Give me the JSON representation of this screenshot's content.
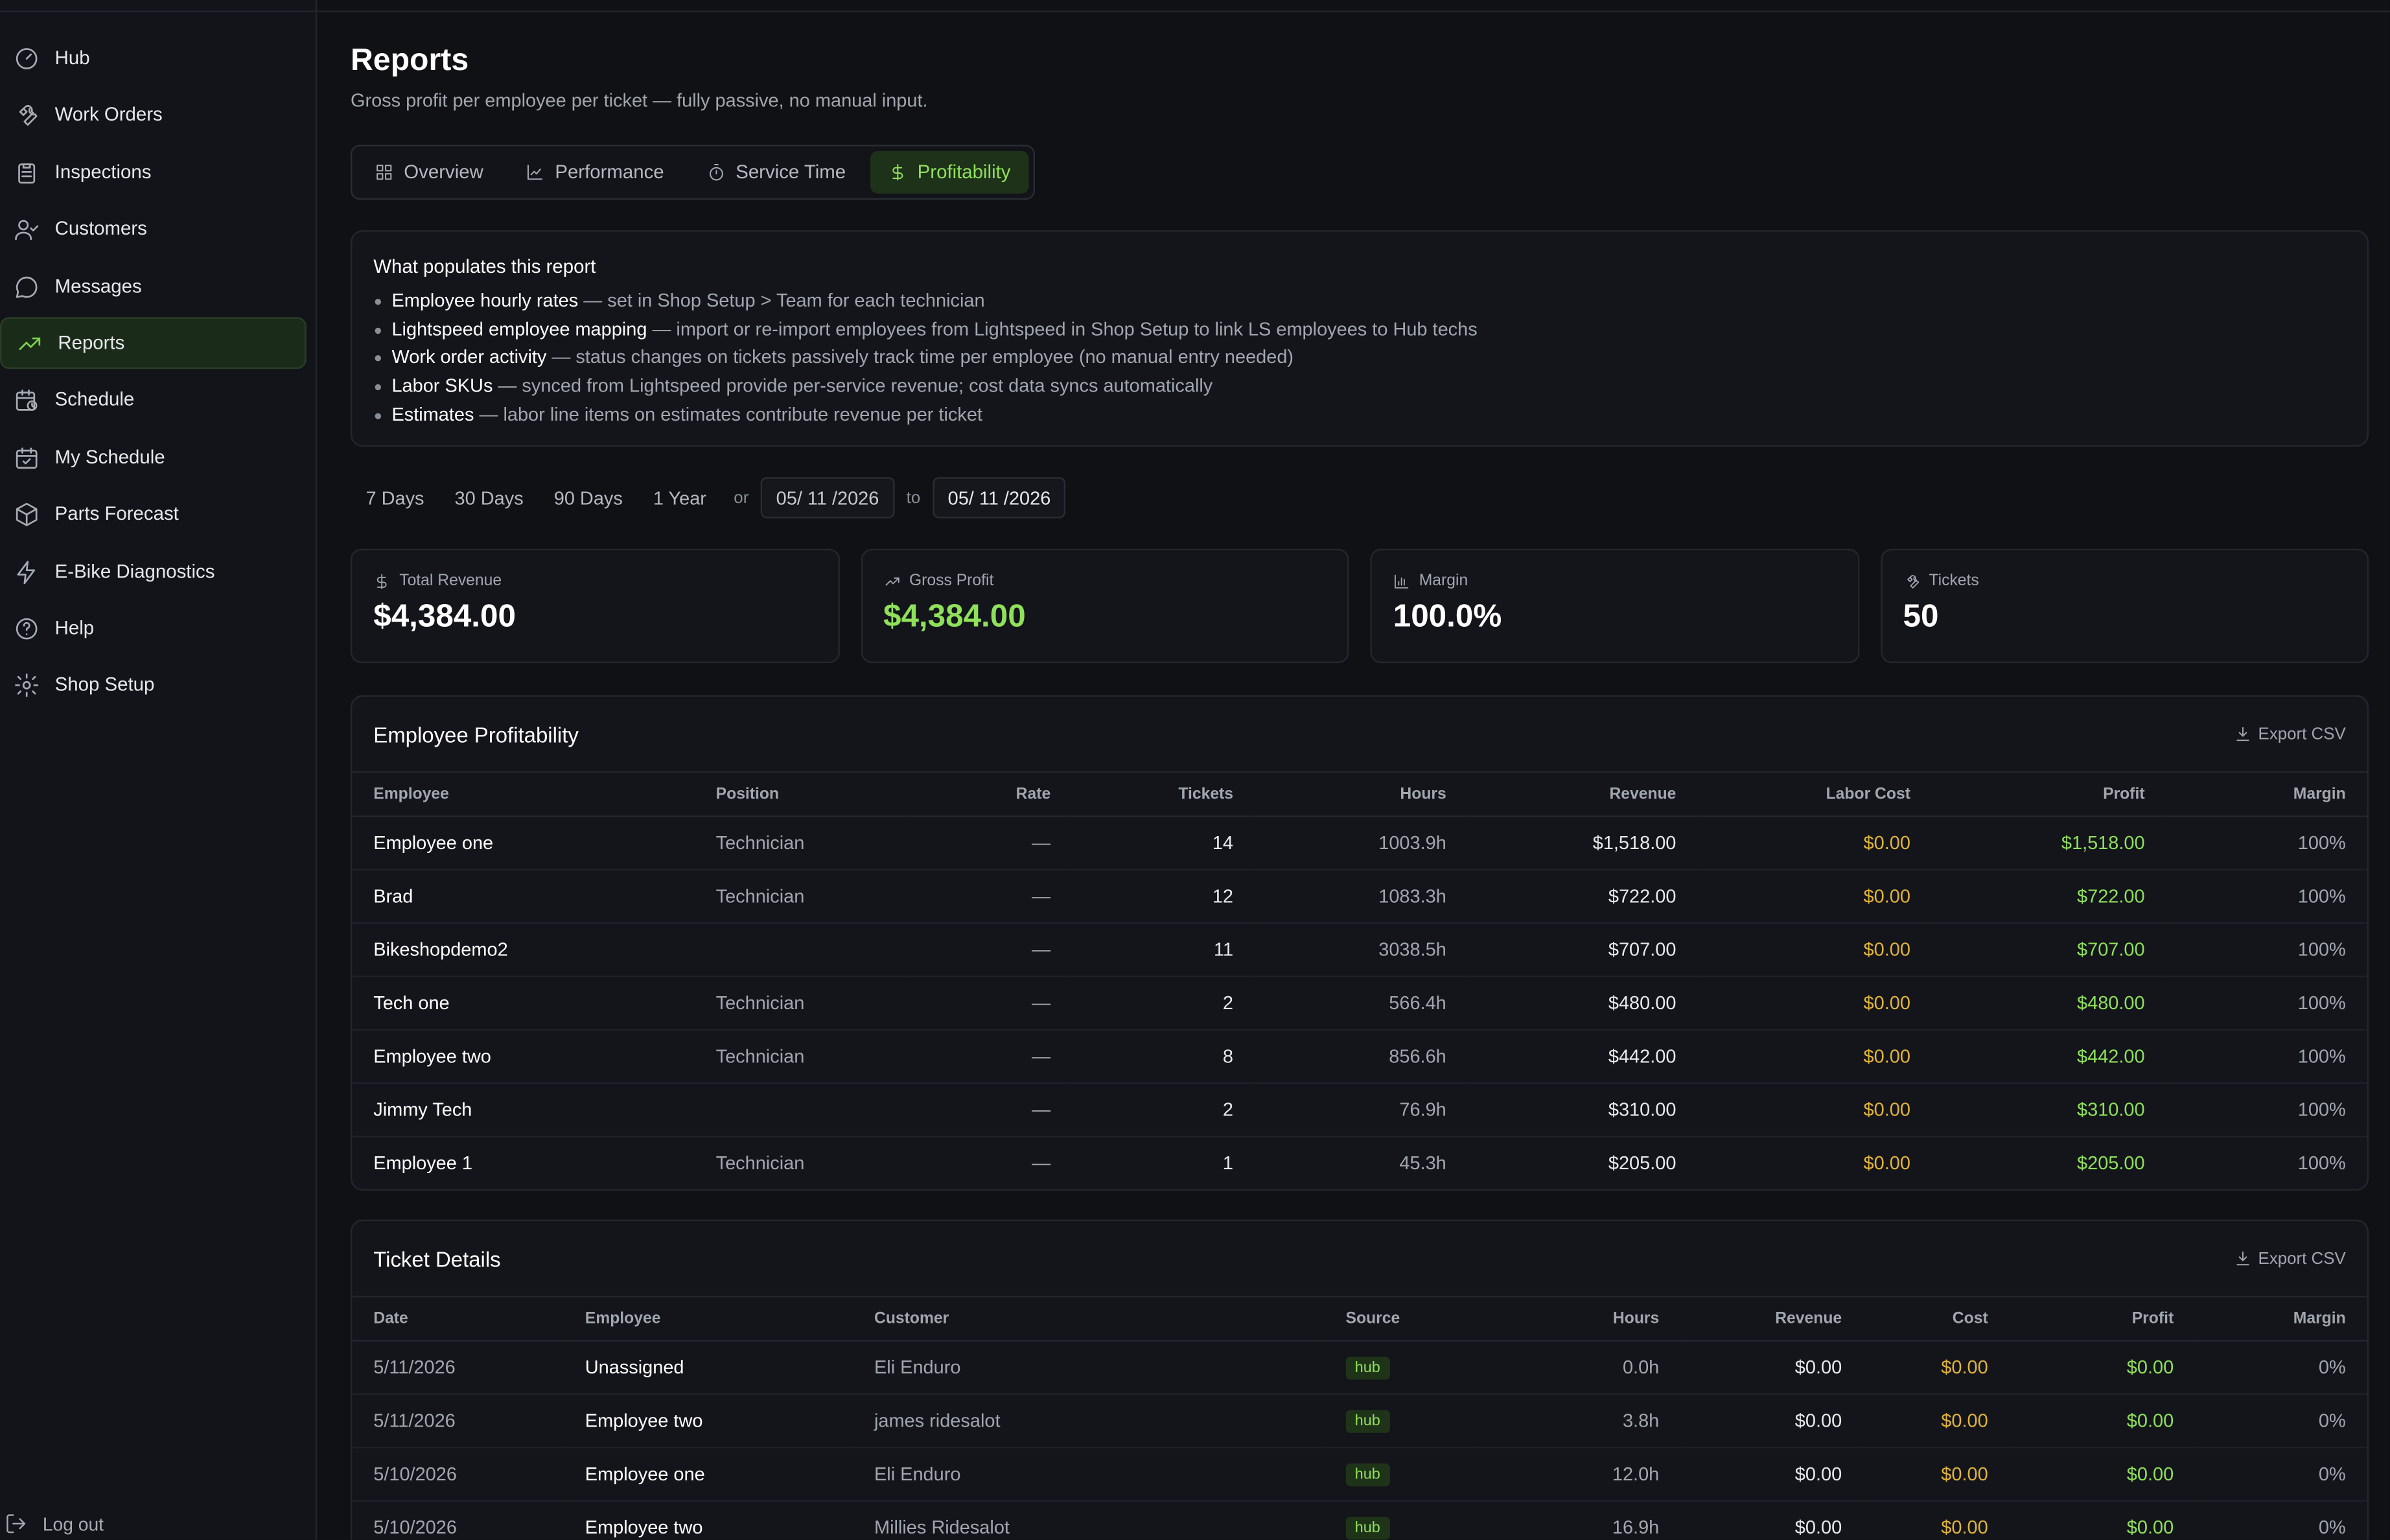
{
  "sidebar": {
    "items": [
      {
        "label": "Hub",
        "icon": "gauge-icon"
      },
      {
        "label": "Work Orders",
        "icon": "wrench-icon"
      },
      {
        "label": "Inspections",
        "icon": "clipboard-icon"
      },
      {
        "label": "Customers",
        "icon": "user-check-icon"
      },
      {
        "label": "Messages",
        "icon": "message-circle-icon"
      },
      {
        "label": "Reports",
        "icon": "trending-up-icon",
        "active": true
      },
      {
        "label": "Schedule",
        "icon": "calendar-clock-icon"
      },
      {
        "label": "My Schedule",
        "icon": "calendar-check-icon"
      },
      {
        "label": "Parts Forecast",
        "icon": "package-icon"
      },
      {
        "label": "E-Bike Diagnostics",
        "icon": "zap-icon"
      },
      {
        "label": "Help",
        "icon": "help-circle-icon"
      },
      {
        "label": "Shop Setup",
        "icon": "gear-icon"
      }
    ],
    "logout_label": "Log out"
  },
  "page": {
    "title": "Reports",
    "subtitle": "Gross profit per employee per ticket — fully passive, no manual input."
  },
  "tabs": [
    {
      "label": "Overview",
      "icon": "grid-icon"
    },
    {
      "label": "Performance",
      "icon": "line-chart-icon"
    },
    {
      "label": "Service Time",
      "icon": "timer-icon"
    },
    {
      "label": "Profitability",
      "icon": "dollar-icon",
      "active": true
    }
  ],
  "info": {
    "title": "What populates this report",
    "items": [
      {
        "term": "Employee hourly rates",
        "desc": " — set in Shop Setup > Team for each technician"
      },
      {
        "term": "Lightspeed employee mapping",
        "desc": " — import or re-import employees from Lightspeed in Shop Setup to link LS employees to Hub techs"
      },
      {
        "term": "Work order activity",
        "desc": " — status changes on tickets passively track time per employee (no manual entry needed)"
      },
      {
        "term": "Labor SKUs",
        "desc": " — synced from Lightspeed provide per-service revenue; cost data syncs automatically"
      },
      {
        "term": "Estimates",
        "desc": " — labor line items on estimates contribute revenue per ticket"
      }
    ]
  },
  "ranges": {
    "options": [
      "7 Days",
      "30 Days",
      "90 Days",
      "1 Year"
    ],
    "or_label": "or",
    "to_label": "to",
    "start_date": "05/ 11 /2026",
    "end_date": "05/ 11 /2026"
  },
  "stats": [
    {
      "label": "Total Revenue",
      "value": "$4,384.00",
      "icon": "dollar-icon"
    },
    {
      "label": "Gross Profit",
      "value": "$4,384.00",
      "icon": "trending-up-icon",
      "accent": "#8fe05a"
    },
    {
      "label": "Margin",
      "value": "100.0%",
      "icon": "bar-chart-icon"
    },
    {
      "label": "Tickets",
      "value": "50",
      "icon": "wrench-icon"
    }
  ],
  "employee_table": {
    "title": "Employee Profitability",
    "export_label": "Export CSV",
    "columns": [
      "Employee",
      "Position",
      "Rate",
      "Tickets",
      "Hours",
      "Revenue",
      "Labor Cost",
      "Profit",
      "Margin"
    ],
    "rows": [
      [
        "Employee one",
        "Technician",
        "—",
        "14",
        "1003.9h",
        "$1,518.00",
        "$0.00",
        "$1,518.00",
        "100%"
      ],
      [
        "Brad",
        "Technician",
        "—",
        "12",
        "1083.3h",
        "$722.00",
        "$0.00",
        "$722.00",
        "100%"
      ],
      [
        "Bikeshopdemo2",
        "",
        "—",
        "11",
        "3038.5h",
        "$707.00",
        "$0.00",
        "$707.00",
        "100%"
      ],
      [
        "Tech one",
        "Technician",
        "—",
        "2",
        "566.4h",
        "$480.00",
        "$0.00",
        "$480.00",
        "100%"
      ],
      [
        "Employee two",
        "Technician",
        "—",
        "8",
        "856.6h",
        "$442.00",
        "$0.00",
        "$442.00",
        "100%"
      ],
      [
        "Jimmy Tech",
        "",
        "—",
        "2",
        "76.9h",
        "$310.00",
        "$0.00",
        "$310.00",
        "100%"
      ],
      [
        "Employee 1",
        "Technician",
        "—",
        "1",
        "45.3h",
        "$205.00",
        "$0.00",
        "$205.00",
        "100%"
      ]
    ]
  },
  "ticket_table": {
    "title": "Ticket Details",
    "export_label": "Export CSV",
    "columns": [
      "Date",
      "Employee",
      "Customer",
      "Source",
      "Hours",
      "Revenue",
      "Cost",
      "Profit",
      "Margin"
    ],
    "rows": [
      [
        "5/11/2026",
        "Unassigned",
        "Eli Enduro",
        "hub",
        "0.0h",
        "$0.00",
        "$0.00",
        "$0.00",
        "0%"
      ],
      [
        "5/11/2026",
        "Employee two",
        "james ridesalot",
        "hub",
        "3.8h",
        "$0.00",
        "$0.00",
        "$0.00",
        "0%"
      ],
      [
        "5/10/2026",
        "Employee one",
        "Eli Enduro",
        "hub",
        "12.0h",
        "$0.00",
        "$0.00",
        "$0.00",
        "0%"
      ],
      [
        "5/10/2026",
        "Employee two",
        "Millies Ridesalot",
        "hub",
        "16.9h",
        "$0.00",
        "$0.00",
        "$0.00",
        "0%"
      ]
    ]
  },
  "colors": {
    "accent_green": "#8fe05a",
    "cost_yellow": "#e2b43a",
    "background": "#0f1115",
    "panel": "#13151a"
  }
}
